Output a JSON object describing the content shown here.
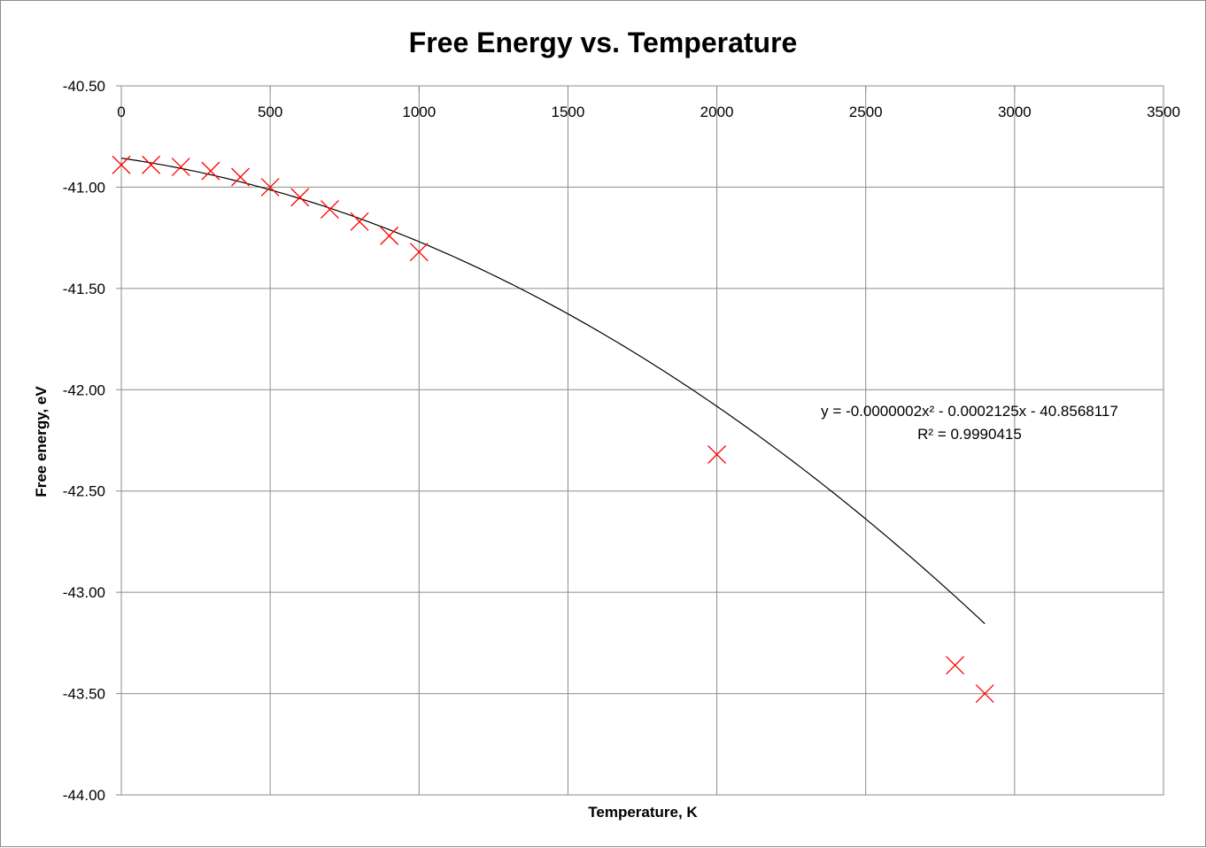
{
  "chart_data": {
    "type": "scatter",
    "title": "Free Energy vs. Temperature",
    "xlabel": "Temperature, K",
    "ylabel": "Free energy, eV",
    "xlim": [
      0,
      3500
    ],
    "ylim": [
      -44.0,
      -40.5
    ],
    "x_ticks": [
      0,
      500,
      1000,
      1500,
      2000,
      2500,
      3000,
      3500
    ],
    "x_tick_labels": [
      "0",
      "500",
      "1000",
      "1500",
      "2000",
      "2500",
      "3000",
      "3500"
    ],
    "y_ticks": [
      -40.5,
      -41.0,
      -41.5,
      -42.0,
      -42.5,
      -43.0,
      -43.5,
      -44.0
    ],
    "y_tick_labels": [
      "-40.50",
      "-41.00",
      "-41.50",
      "-42.00",
      "-42.50",
      "-43.00",
      "-43.50",
      "-44.00"
    ],
    "x_axis_position": "top",
    "grid": true,
    "marker": "x",
    "marker_color": "#ff0000",
    "trendline_color": "#000000",
    "points": [
      {
        "x": 0,
        "y": -40.89
      },
      {
        "x": 100,
        "y": -40.89
      },
      {
        "x": 200,
        "y": -40.9
      },
      {
        "x": 300,
        "y": -40.92
      },
      {
        "x": 400,
        "y": -40.95
      },
      {
        "x": 500,
        "y": -41.0
      },
      {
        "x": 600,
        "y": -41.05
      },
      {
        "x": 700,
        "y": -41.11
      },
      {
        "x": 800,
        "y": -41.17
      },
      {
        "x": 900,
        "y": -41.24
      },
      {
        "x": 1000,
        "y": -41.32
      },
      {
        "x": 2000,
        "y": -42.32
      },
      {
        "x": 2800,
        "y": -43.36
      },
      {
        "x": 2900,
        "y": -43.5
      }
    ],
    "trendline": {
      "type": "polynomial",
      "coefficients": [
        -2e-07,
        -0.0002125,
        -40.8568117
      ],
      "x_range": [
        0,
        2900
      ],
      "equation_text": "y = -0.0000002x² - 0.0002125x - 40.8568117",
      "r2_text": "R² = 0.9990415"
    }
  }
}
